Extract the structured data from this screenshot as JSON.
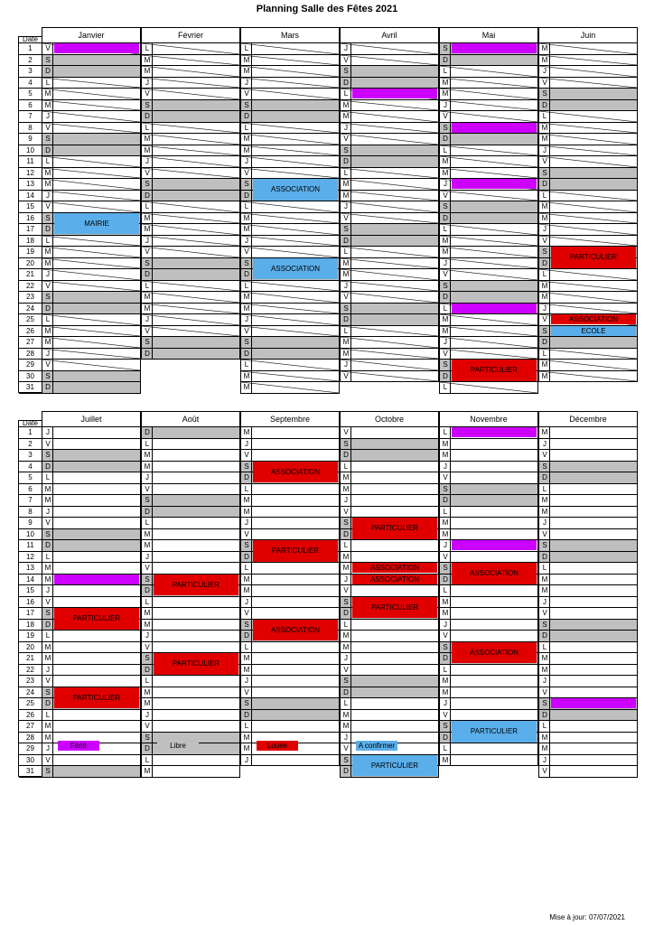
{
  "title": "Planning Salle des Fêtes 2021",
  "date_header": "Date",
  "update": "Mise à jour: 07/07/2021",
  "legend": [
    {
      "label": "Férié",
      "color": "#cc00ff"
    },
    {
      "label": "Libre",
      "color": "#bfbfbf"
    },
    {
      "label": "Louée",
      "color": "#e00000"
    },
    {
      "label": "A confirmer",
      "color": "#5aaeea"
    }
  ],
  "semesters": [
    {
      "months": [
        "Janvier",
        "Février",
        "Mars",
        "Avril",
        "Mai",
        "Juin"
      ],
      "days": [
        [
          "V",
          "S",
          "D",
          "L",
          "M",
          "M",
          "J",
          "V",
          "S",
          "D",
          "L",
          "M",
          "M",
          "J",
          "V",
          "S",
          "D",
          "L",
          "M",
          "M",
          "J",
          "V",
          "S",
          "D",
          "L",
          "M",
          "M",
          "J",
          "V",
          "S",
          "D"
        ],
        [
          "L",
          "M",
          "M",
          "J",
          "V",
          "S",
          "D",
          "L",
          "M",
          "M",
          "J",
          "V",
          "S",
          "D",
          "L",
          "M",
          "M",
          "J",
          "V",
          "S",
          "D",
          "L",
          "M",
          "M",
          "J",
          "V",
          "S",
          "D"
        ],
        [
          "L",
          "M",
          "M",
          "J",
          "V",
          "S",
          "D",
          "L",
          "M",
          "M",
          "J",
          "V",
          "S",
          "D",
          "L",
          "M",
          "M",
          "J",
          "V",
          "S",
          "D",
          "L",
          "M",
          "M",
          "J",
          "V",
          "S",
          "D",
          "L",
          "M",
          "M"
        ],
        [
          "J",
          "V",
          "S",
          "D",
          "L",
          "M",
          "M",
          "J",
          "V",
          "S",
          "D",
          "L",
          "M",
          "M",
          "J",
          "V",
          "S",
          "D",
          "L",
          "M",
          "M",
          "J",
          "V",
          "S",
          "D",
          "L",
          "M",
          "M",
          "J",
          "V"
        ],
        [
          "S",
          "D",
          "L",
          "M",
          "M",
          "J",
          "V",
          "S",
          "D",
          "L",
          "M",
          "M",
          "J",
          "V",
          "S",
          "D",
          "L",
          "M",
          "M",
          "J",
          "V",
          "S",
          "D",
          "L",
          "M",
          "M",
          "J",
          "V",
          "S",
          "D",
          "L"
        ],
        [
          "M",
          "M",
          "J",
          "V",
          "S",
          "D",
          "L",
          "M",
          "M",
          "J",
          "V",
          "S",
          "D",
          "L",
          "M",
          "M",
          "J",
          "V",
          "S",
          "D",
          "L",
          "M",
          "M",
          "J",
          "V",
          "S",
          "D",
          "L",
          "M",
          "M"
        ]
      ],
      "events": [
        {
          "m": 0,
          "d": 1,
          "span": 1,
          "type": "purple",
          "label": ""
        },
        {
          "m": 0,
          "d": 16,
          "span": 2,
          "type": "blue",
          "label": "MAIRIE"
        },
        {
          "m": 2,
          "d": 13,
          "span": 2,
          "type": "blue",
          "label": "ASSOCIATION"
        },
        {
          "m": 2,
          "d": 20,
          "span": 2,
          "type": "blue",
          "label": "ASSOCIATION"
        },
        {
          "m": 3,
          "d": 5,
          "span": 1,
          "type": "purple",
          "label": ""
        },
        {
          "m": 4,
          "d": 1,
          "span": 1,
          "type": "purple",
          "label": ""
        },
        {
          "m": 4,
          "d": 8,
          "span": 1,
          "type": "purple",
          "label": ""
        },
        {
          "m": 4,
          "d": 13,
          "span": 1,
          "type": "purple",
          "label": ""
        },
        {
          "m": 4,
          "d": 24,
          "span": 1,
          "type": "purple",
          "label": ""
        },
        {
          "m": 4,
          "d": 29,
          "span": 2,
          "type": "red",
          "label": "PARTICULIER"
        },
        {
          "m": 5,
          "d": 19,
          "span": 2,
          "type": "red",
          "label": "PARTICULIER"
        },
        {
          "m": 5,
          "d": 25,
          "span": 1,
          "type": "red",
          "label": "ASSOCIATION"
        },
        {
          "m": 5,
          "d": 26,
          "span": 1,
          "type": "blue",
          "label": "ECOLE"
        }
      ]
    },
    {
      "months": [
        "Juillet",
        "Août",
        "Septembre",
        "Octobre",
        "Novembre",
        "Décembre"
      ],
      "days": [
        [
          "J",
          "V",
          "S",
          "D",
          "L",
          "M",
          "M",
          "J",
          "V",
          "S",
          "D",
          "L",
          "M",
          "M",
          "J",
          "V",
          "S",
          "D",
          "L",
          "M",
          "M",
          "J",
          "V",
          "S",
          "D",
          "L",
          "M",
          "M",
          "J",
          "V",
          "S"
        ],
        [
          "D",
          "L",
          "M",
          "M",
          "J",
          "V",
          "S",
          "D",
          "L",
          "M",
          "M",
          "J",
          "V",
          "S",
          "D",
          "L",
          "M",
          "M",
          "J",
          "V",
          "S",
          "D",
          "L",
          "M",
          "M",
          "J",
          "V",
          "S",
          "D",
          "L",
          "M"
        ],
        [
          "M",
          "J",
          "V",
          "S",
          "D",
          "L",
          "M",
          "M",
          "J",
          "V",
          "S",
          "D",
          "L",
          "M",
          "M",
          "J",
          "V",
          "S",
          "D",
          "L",
          "M",
          "M",
          "J",
          "V",
          "S",
          "D",
          "L",
          "M",
          "M",
          "J"
        ],
        [
          "V",
          "S",
          "D",
          "L",
          "M",
          "M",
          "J",
          "V",
          "S",
          "D",
          "L",
          "M",
          "M",
          "J",
          "V",
          "S",
          "D",
          "L",
          "M",
          "M",
          "J",
          "V",
          "S",
          "D",
          "L",
          "M",
          "M",
          "J",
          "V",
          "S",
          "D"
        ],
        [
          "L",
          "M",
          "M",
          "J",
          "V",
          "S",
          "D",
          "L",
          "M",
          "M",
          "J",
          "V",
          "S",
          "D",
          "L",
          "M",
          "M",
          "J",
          "V",
          "S",
          "D",
          "L",
          "M",
          "M",
          "J",
          "V",
          "S",
          "D",
          "L",
          "M"
        ],
        [
          "M",
          "J",
          "V",
          "S",
          "D",
          "L",
          "M",
          "M",
          "J",
          "V",
          "S",
          "D",
          "L",
          "M",
          "M",
          "J",
          "V",
          "S",
          "D",
          "L",
          "M",
          "M",
          "J",
          "V",
          "S",
          "D",
          "L",
          "M",
          "M",
          "J",
          "V"
        ]
      ],
      "greys": [
        [
          3,
          4,
          10,
          11,
          17,
          18,
          24,
          25,
          31
        ],
        [
          1,
          7,
          8,
          14,
          15,
          21,
          22,
          28,
          29
        ],
        [
          4,
          5,
          11,
          12,
          18,
          19,
          25,
          26
        ],
        [
          2,
          3,
          9,
          10,
          16,
          17,
          23,
          24,
          30,
          31
        ],
        [
          6,
          7,
          13,
          14,
          20,
          21,
          27,
          28
        ],
        [
          4,
          5,
          11,
          12,
          18,
          19,
          25,
          26
        ]
      ],
      "events": [
        {
          "m": 0,
          "d": 14,
          "span": 1,
          "type": "purple",
          "label": ""
        },
        {
          "m": 0,
          "d": 17,
          "span": 2,
          "type": "red",
          "label": "PARTICULIER"
        },
        {
          "m": 0,
          "d": 24,
          "span": 2,
          "type": "red",
          "label": "PARTICULIER"
        },
        {
          "m": 1,
          "d": 14,
          "span": 2,
          "type": "red",
          "label": "PARTICULIER"
        },
        {
          "m": 1,
          "d": 21,
          "span": 2,
          "type": "red",
          "label": "PARTICULIER"
        },
        {
          "m": 2,
          "d": 4,
          "span": 2,
          "type": "red",
          "label": "ASSOCIATION"
        },
        {
          "m": 2,
          "d": 11,
          "span": 2,
          "type": "red",
          "label": "PARTICULIER"
        },
        {
          "m": 2,
          "d": 18,
          "span": 2,
          "type": "red",
          "label": "ASSOCIATION"
        },
        {
          "m": 3,
          "d": 9,
          "span": 2,
          "type": "red",
          "label": "PARTICULIER"
        },
        {
          "m": 3,
          "d": 13,
          "span": 1,
          "type": "red",
          "label": "ASSOCIATION"
        },
        {
          "m": 3,
          "d": 14,
          "span": 1,
          "type": "red",
          "label": "ASSOCIATION"
        },
        {
          "m": 3,
          "d": 16,
          "span": 2,
          "type": "red",
          "label": "PARTICULIER"
        },
        {
          "m": 3,
          "d": 30,
          "span": 2,
          "type": "blue",
          "label": "PARTICULIER"
        },
        {
          "m": 4,
          "d": 1,
          "span": 1,
          "type": "purple",
          "label": ""
        },
        {
          "m": 4,
          "d": 11,
          "span": 1,
          "type": "purple",
          "label": ""
        },
        {
          "m": 4,
          "d": 13,
          "span": 2,
          "type": "red",
          "label": "ASSOCIATION"
        },
        {
          "m": 4,
          "d": 20,
          "span": 2,
          "type": "red",
          "label": "ASSOCIATION"
        },
        {
          "m": 4,
          "d": 27,
          "span": 2,
          "type": "blue",
          "label": "PARTICULIER"
        },
        {
          "m": 5,
          "d": 25,
          "span": 1,
          "type": "purple",
          "label": ""
        }
      ]
    }
  ]
}
